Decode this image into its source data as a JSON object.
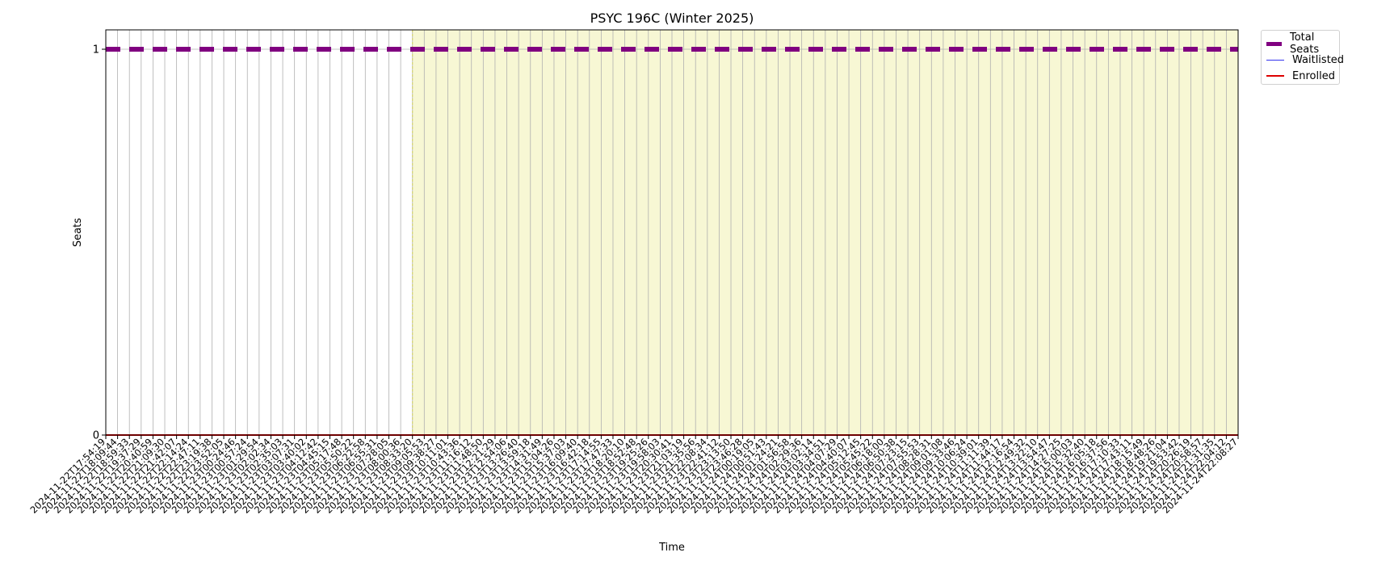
{
  "chart_data": {
    "type": "line",
    "title": "PSYC 196C (Winter 2025)",
    "xlabel": "Time",
    "ylabel": "Seats",
    "ylim": [
      0,
      1
    ],
    "yticks": [
      "0",
      "1"
    ],
    "grid": true,
    "legend_position": "outside-top-right",
    "x": [
      "2024-11-22T17:54:19",
      "2024-11-22T18:09:44",
      "2024-11-22T18:59:33",
      "2024-11-22T19:37:29",
      "2024-11-22T20:40:59",
      "2024-11-22T21:09:30",
      "2024-11-22T21:42:07",
      "2024-11-22T22:14:24",
      "2024-11-22T22:47:11",
      "2024-11-22T23:19:38",
      "2024-11-22T23:52:05",
      "2024-11-23T00:24:46",
      "2024-11-23T00:57:24",
      "2024-11-23T01:29:54",
      "2024-11-23T02:02:34",
      "2024-11-23T02:35:03",
      "2024-11-23T03:07:31",
      "2024-11-23T03:40:02",
      "2024-11-23T04:12:42",
      "2024-11-23T04:45:15",
      "2024-11-23T05:17:48",
      "2024-11-23T05:50:22",
      "2024-11-23T06:22:58",
      "2024-11-23T06:55:31",
      "2024-11-23T07:28:05",
      "2024-11-23T08:00:36",
      "2024-11-23T08:33:20",
      "2024-11-23T09:05:53",
      "2024-11-23T09:38:27",
      "2024-11-23T10:11:01",
      "2024-11-23T10:43:36",
      "2024-11-23T11:16:12",
      "2024-11-23T11:48:50",
      "2024-11-23T12:21:29",
      "2024-11-23T12:54:06",
      "2024-11-23T13:26:40",
      "2024-11-23T13:59:18",
      "2024-11-23T14:31:49",
      "2024-11-23T15:04:26",
      "2024-11-23T15:37:03",
      "2024-11-23T16:09:40",
      "2024-11-23T16:42:18",
      "2024-11-23T17:14:55",
      "2024-11-23T17:47:33",
      "2024-11-23T18:20:10",
      "2024-11-23T18:52:48",
      "2024-11-23T19:25:26",
      "2024-11-23T19:58:03",
      "2024-11-23T20:30:41",
      "2024-11-23T21:03:19",
      "2024-11-23T21:35:56",
      "2024-11-23T22:08:34",
      "2024-11-23T22:41:12",
      "2024-11-23T23:13:50",
      "2024-11-23T23:46:28",
      "2024-11-24T00:19:05",
      "2024-11-24T00:51:43",
      "2024-11-24T01:24:21",
      "2024-11-24T01:56:58",
      "2024-11-24T02:29:36",
      "2024-11-24T03:02:14",
      "2024-11-24T03:34:51",
      "2024-11-24T04:07:29",
      "2024-11-24T04:40:07",
      "2024-11-24T05:12:45",
      "2024-11-24T05:45:22",
      "2024-11-24T06:18:00",
      "2024-11-24T06:50:38",
      "2024-11-24T07:23:15",
      "2024-11-24T07:55:53",
      "2024-11-24T08:28:31",
      "2024-11-24T09:01:08",
      "2024-11-24T09:33:46",
      "2024-11-24T10:06:24",
      "2024-11-24T10:39:01",
      "2024-11-24T11:11:39",
      "2024-11-24T11:44:17",
      "2024-11-24T12:16:54",
      "2024-11-24T12:49:32",
      "2024-11-24T13:22:10",
      "2024-11-24T13:54:47",
      "2024-11-24T14:27:25",
      "2024-11-24T15:00:03",
      "2024-11-24T15:32:40",
      "2024-11-24T16:05:18",
      "2024-11-24T16:37:56",
      "2024-11-24T17:10:33",
      "2024-11-24T17:43:11",
      "2024-11-24T18:15:49",
      "2024-11-24T18:48:26",
      "2024-11-24T19:21:04",
      "2024-11-24T19:53:42",
      "2024-11-24T20:26:19",
      "2024-11-24T20:58:57",
      "2024-11-24T21:31:35",
      "2024-11-24T22:04:12",
      "2024-11-24T22:08:27"
    ],
    "shaded_region": {
      "x_start": "2024-11-23T08:33:20",
      "x_end": "2024-11-24T22:08:27",
      "color": "#f7f7d4"
    },
    "series": [
      {
        "name": "Total Seats",
        "value": 1,
        "color": "#800080",
        "style": "dashed"
      },
      {
        "name": "Waitlisted",
        "value": 0,
        "color": "#3333ee",
        "style": "solid"
      },
      {
        "name": "Enrolled",
        "value": 0,
        "color": "#dd0000",
        "style": "solid"
      }
    ]
  }
}
